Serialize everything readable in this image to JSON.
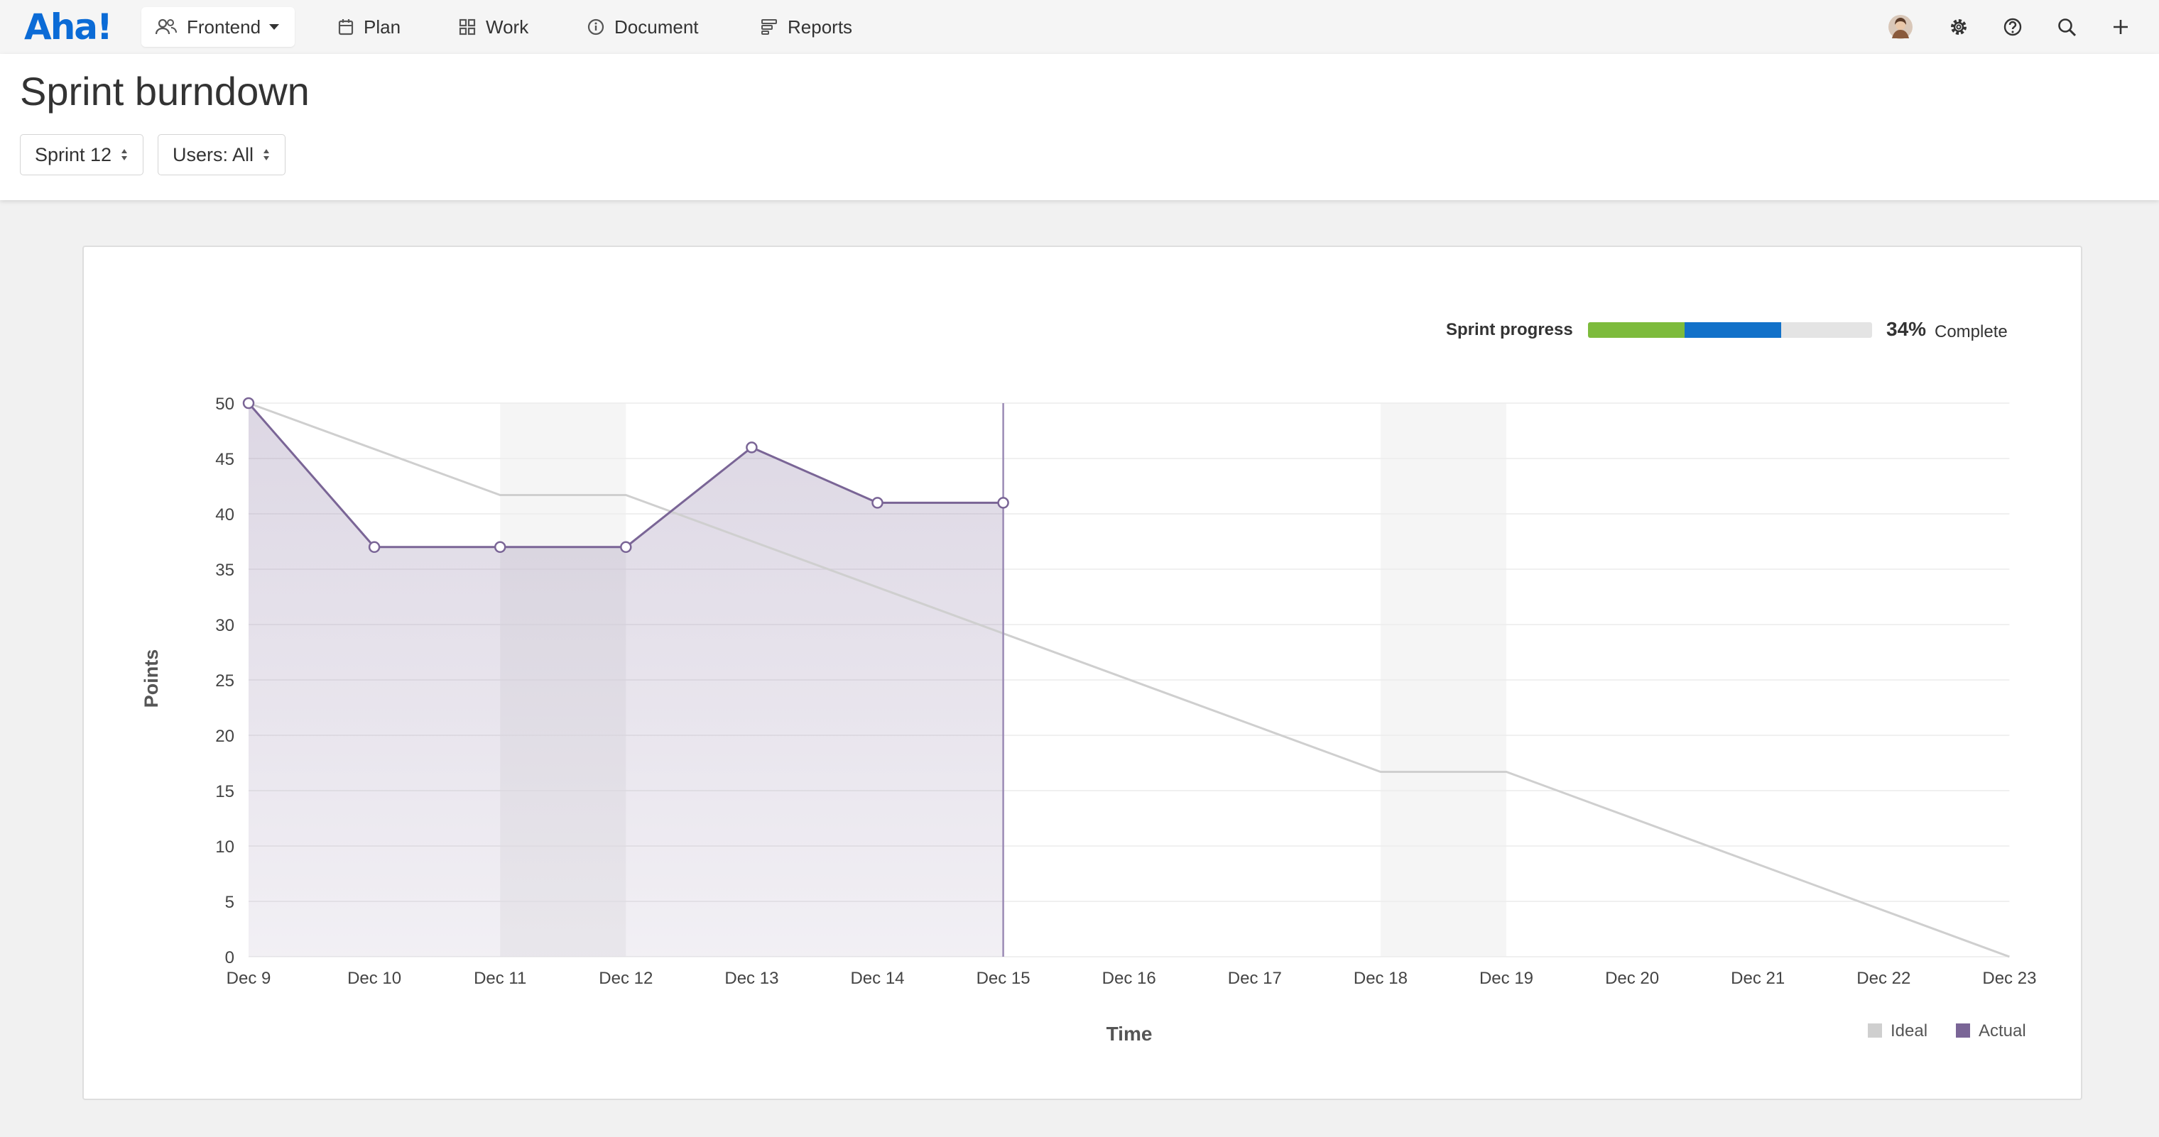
{
  "app": {
    "logo_text": "Aha!",
    "brand_color": "#0b6bd6"
  },
  "nav": {
    "workspace_label": "Frontend",
    "items": [
      {
        "label": "Plan",
        "icon": "calendar-icon"
      },
      {
        "label": "Work",
        "icon": "grid-icon"
      },
      {
        "label": "Document",
        "icon": "info-icon"
      },
      {
        "label": "Reports",
        "icon": "reports-icon"
      }
    ]
  },
  "toolbar_icons": [
    "avatar",
    "gear-icon",
    "help-icon",
    "search-icon",
    "plus-icon"
  ],
  "page": {
    "title": "Sprint burndown",
    "filters": {
      "sprint": "Sprint 12",
      "users": "Users: All"
    }
  },
  "progress": {
    "label": "Sprint progress",
    "percent_text": "34%",
    "complete_word": "Complete",
    "completed_fraction": 0.34,
    "in_progress_fraction": 0.34,
    "colors": {
      "completed": "#7dbb3c",
      "in_progress": "#1271c9",
      "remaining": "#e4e4e4"
    }
  },
  "chart_data": {
    "type": "line",
    "xlabel": "Time",
    "ylabel": "Points",
    "categories": [
      "Dec 9",
      "Dec 10",
      "Dec 11",
      "Dec 12",
      "Dec 13",
      "Dec 14",
      "Dec 15",
      "Dec 16",
      "Dec 17",
      "Dec 18",
      "Dec 19",
      "Dec 20",
      "Dec 21",
      "Dec 22",
      "Dec 23"
    ],
    "yticks": [
      0,
      5,
      10,
      15,
      20,
      25,
      30,
      35,
      40,
      45,
      50
    ],
    "ylim": [
      0,
      50
    ],
    "nonworking_days": [
      [
        "Dec 11",
        "Dec 12"
      ],
      [
        "Dec 18",
        "Dec 19"
      ]
    ],
    "today": "Dec 15",
    "grid": true,
    "legend_position": "bottom-right",
    "series": [
      {
        "name": "Ideal",
        "color": "#cfcfcf",
        "x": [
          "Dec 9",
          "Dec 11",
          "Dec 12",
          "Dec 18",
          "Dec 19",
          "Dec 23"
        ],
        "values": [
          50,
          41.7,
          41.7,
          16.7,
          16.7,
          0
        ]
      },
      {
        "name": "Actual",
        "color": "#7a6596",
        "x": [
          "Dec 9",
          "Dec 10",
          "Dec 11",
          "Dec 12",
          "Dec 13",
          "Dec 14",
          "Dec 15"
        ],
        "values": [
          50,
          37,
          37,
          37,
          46,
          41,
          41
        ]
      }
    ]
  }
}
